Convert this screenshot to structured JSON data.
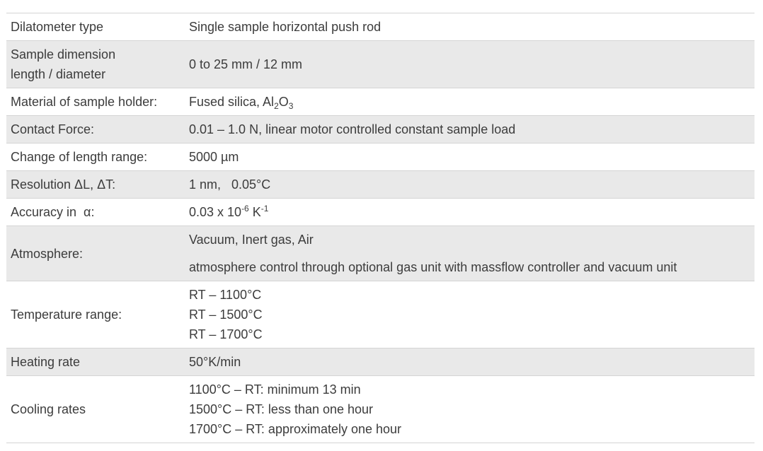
{
  "rows": {
    "type": {
      "label": "Dilatometer type",
      "value": "Single sample horizontal push rod"
    },
    "dimension": {
      "label_line1": "Sample dimension",
      "label_line2": "length / diameter",
      "value": "0 to 25 mm / 12 mm"
    },
    "holder": {
      "label": "Material of sample holder:",
      "value_prefix": "Fused silica, Al",
      "sub1": "2",
      "mid": "O",
      "sub2": "3"
    },
    "force": {
      "label": "Contact Force:",
      "value": "0.01 – 1.0 N, linear motor controlled constant sample load"
    },
    "change": {
      "label": "Change of length range:",
      "value": "5000 µm"
    },
    "resolution": {
      "label": "Resolution ΔL, ΔT:",
      "value": "1 nm,   0.05°C"
    },
    "accuracy": {
      "label": "Accuracy in  α:",
      "value_prefix": "0.03 x 10",
      "sup1": "-6",
      "unit": " K",
      "sup2": "-1"
    },
    "atmosphere": {
      "label": "Atmosphere:",
      "line1": "Vacuum, Inert gas, Air",
      "line2": "atmosphere control through optional gas unit with massflow controller and vacuum unit"
    },
    "temperature": {
      "label": "Temperature range:",
      "lines": [
        "RT – 1100°C",
        "RT – 1500°C",
        "RT – 1700°C"
      ]
    },
    "heating": {
      "label": "Heating rate",
      "value": "50°K/min"
    },
    "cooling": {
      "label": "Cooling rates",
      "lines": [
        "1100°C – RT: minimum 13 min",
        "1500°C – RT: less than one hour",
        "1700°C – RT: approximately one hour"
      ]
    }
  }
}
